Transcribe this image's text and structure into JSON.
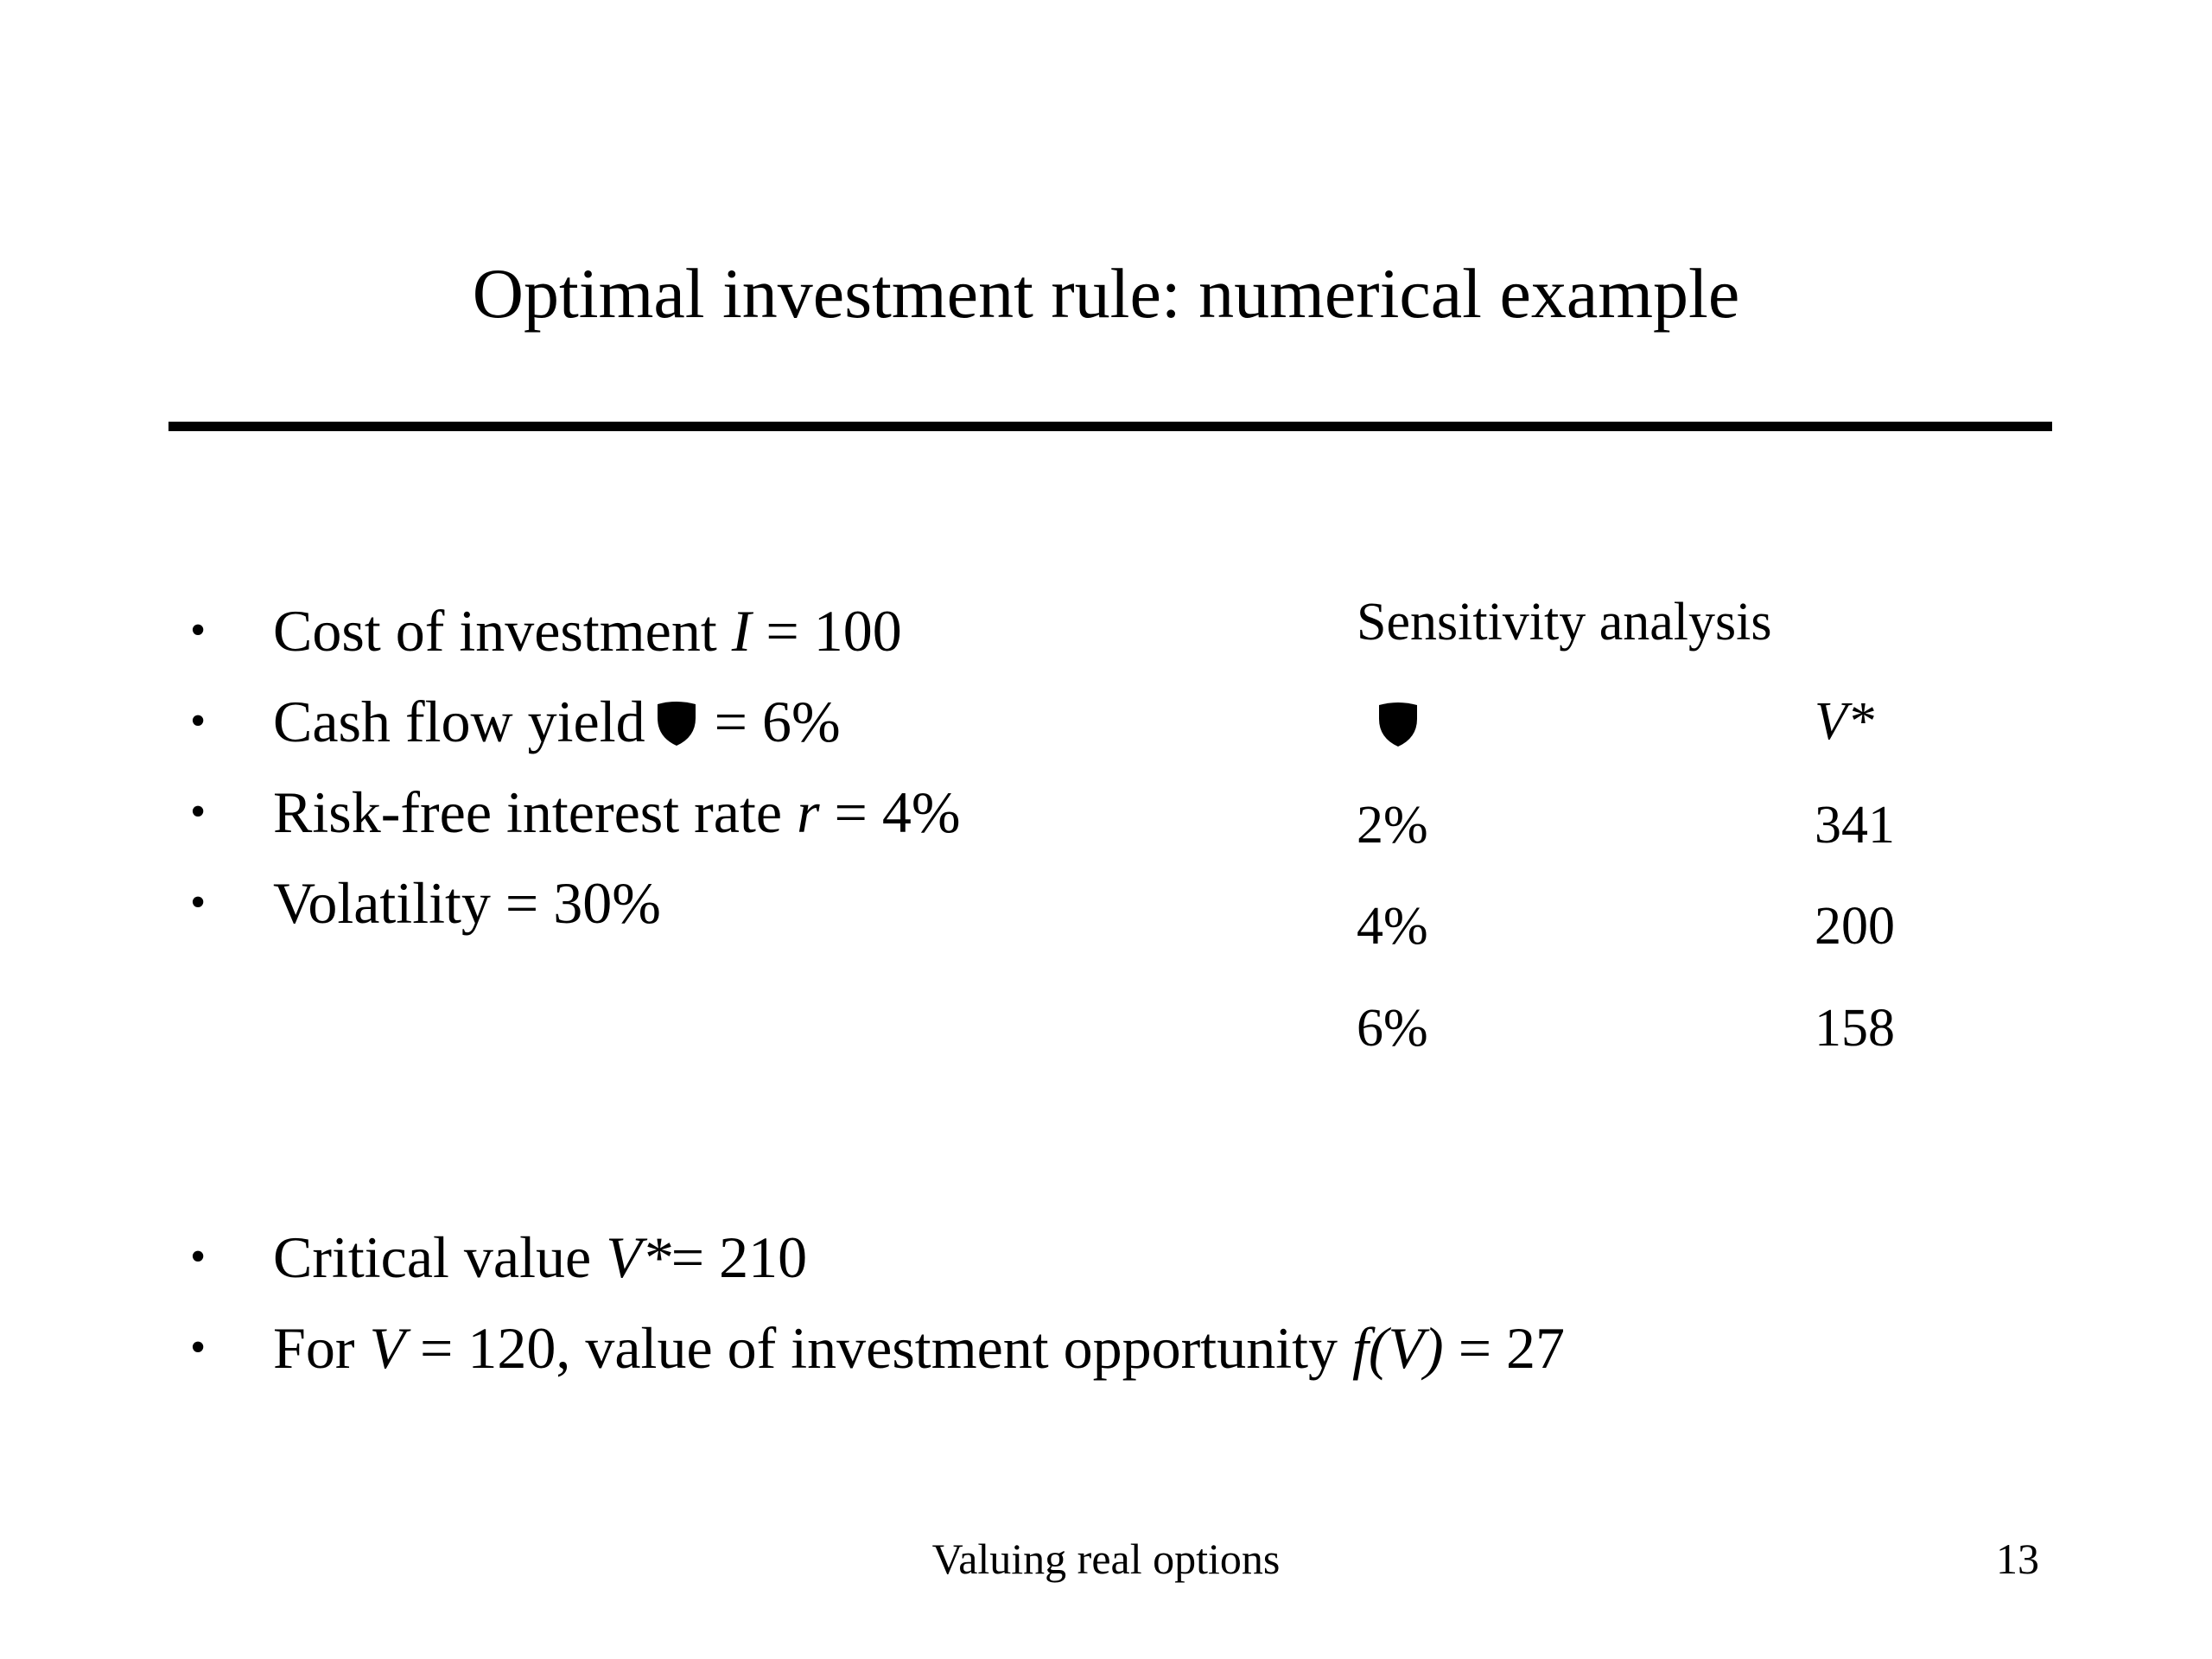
{
  "slide": {
    "title": "Optimal investment rule: numerical example",
    "bullets_top": [
      {
        "label": "Cost of investment ",
        "var": "I",
        "rest": " = 100"
      },
      {
        "label": "Cash flow yield",
        "symbol": "shield-icon",
        "rest": "= 6%"
      },
      {
        "label": "Risk-free interest rate ",
        "var": "r",
        "rest": " = 4%"
      },
      {
        "label": "Volatility = 30%"
      }
    ],
    "bullets_bottom": [
      {
        "label": "Critical value ",
        "var": "V*",
        "rest": "= 210"
      },
      {
        "label": "For ",
        "var": "V",
        "mid": " = 120, value of investment opportunity ",
        "var2": "f(V)",
        "rest": " = 27"
      }
    ],
    "bullet_char": "•"
  },
  "sensitivity": {
    "title": "Sensitivity analysis",
    "col_symbol": "shield-icon",
    "col_v": "V*",
    "rows": [
      {
        "yield": "2%",
        "v": "341"
      },
      {
        "yield": "4%",
        "v": "200"
      },
      {
        "yield": "6%",
        "v": "158"
      }
    ]
  },
  "footer": {
    "center": "Valuing real options",
    "page": "13"
  }
}
